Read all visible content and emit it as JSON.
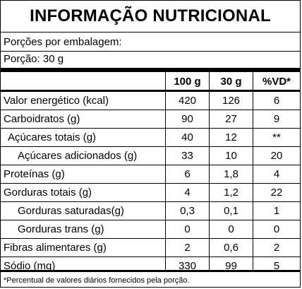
{
  "title": "INFORMAÇÃO NUTRICIONAL",
  "portions_per_package": "Porções por embalagem:",
  "portion": "Porção: 30 g",
  "columns": [
    "100 g",
    "30 g",
    "%VD*"
  ],
  "rows": [
    {
      "label": "Valor energético (kcal)",
      "indent": 0,
      "v100": "420",
      "v30": "126",
      "vd": "6"
    },
    {
      "label": "Carboidratos (g)",
      "indent": 0,
      "v100": "90",
      "v30": "27",
      "vd": "9"
    },
    {
      "label": "Açúcares totais (g)",
      "indent": 1,
      "v100": "40",
      "v30": "12",
      "vd": "**"
    },
    {
      "label": "Açúcares adicionados (g)",
      "indent": 2,
      "v100": "33",
      "v30": "10",
      "vd": "20"
    },
    {
      "label": "Proteínas (g)",
      "indent": 0,
      "v100": "6",
      "v30": "1,8",
      "vd": "4"
    },
    {
      "label": "Gorduras totais (g)",
      "indent": 0,
      "v100": "4",
      "v30": "1,2",
      "vd": "22"
    },
    {
      "label": "Gorduras saturadas(g)",
      "indent": 2,
      "v100": "0,3",
      "v30": "0,1",
      "vd": "1"
    },
    {
      "label": "Gorduras trans (g)",
      "indent": 2,
      "v100": "0",
      "v30": "0",
      "vd": "0"
    },
    {
      "label": "Fibras alimentares (g)",
      "indent": 0,
      "v100": "2",
      "v30": "0,6",
      "vd": "2"
    },
    {
      "label": "Sódio (mg)",
      "indent": 0,
      "v100": "330",
      "v30": "99",
      "vd": "5"
    }
  ],
  "footnote": "*Percentual de valores diários fornecidos pela porção."
}
